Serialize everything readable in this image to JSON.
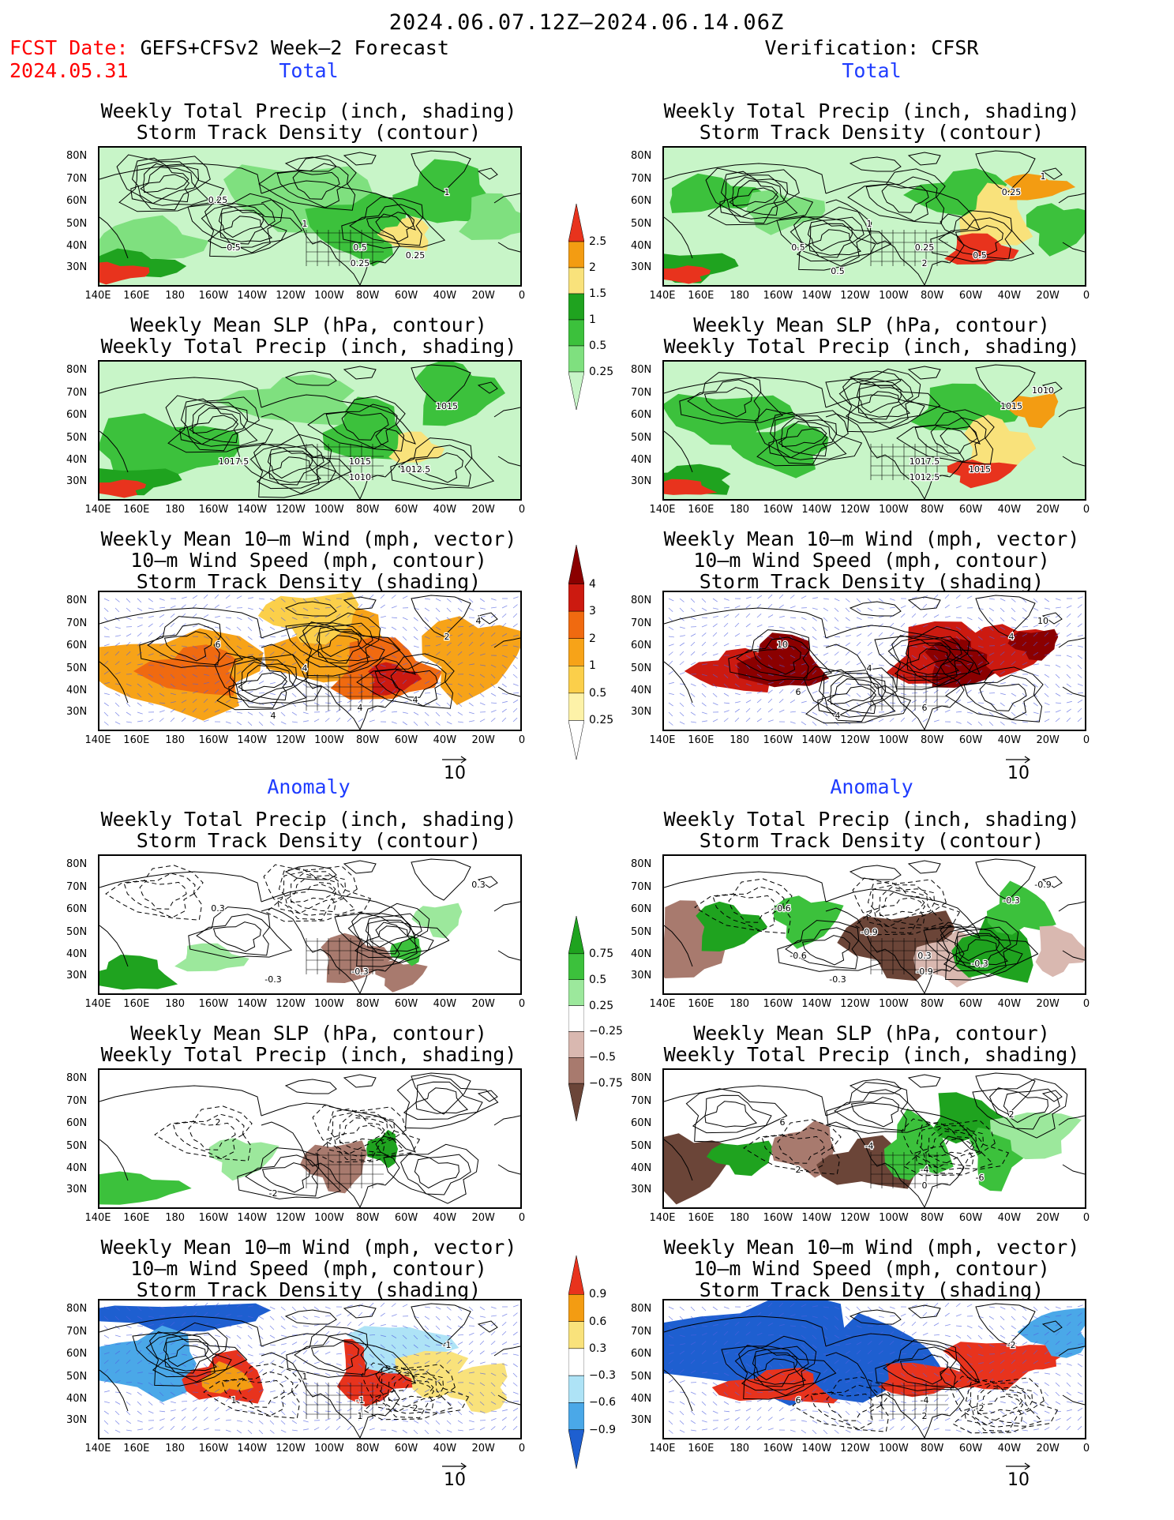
{
  "header": {
    "period": "2024.06.07.12Z–2024.06.14.06Z",
    "fcst_prefix": "FCST Date:",
    "fcst_model": "GEFS+CFSv2 Week–2 Forecast",
    "fcst_date": "2024.05.31",
    "verification": "Verification: CFSR"
  },
  "sections": {
    "total": "Total",
    "anomaly": "Anomaly"
  },
  "panel_titles": {
    "precip_storm": [
      "Weekly Total Precip (inch, shading)",
      "Storm Track Density (contour)"
    ],
    "slp_precip": [
      "Weekly Mean SLP (hPa, contour)",
      "Weekly Total Precip (inch, shading)"
    ],
    "wind_storm": [
      "Weekly Mean 10–m Wind (mph, vector)",
      "10–m Wind Speed (mph, contour)",
      "Storm Track Density (shading)"
    ]
  },
  "axes": {
    "lat_labels": [
      "80N",
      "70N",
      "60N",
      "50N",
      "40N",
      "30N"
    ],
    "lon_labels": [
      "140E",
      "160E",
      "180",
      "160W",
      "140W",
      "120W",
      "100W",
      "80W",
      "60W",
      "40W",
      "20W",
      "0"
    ]
  },
  "vector_ref": "10",
  "colorbars": {
    "total_precip": {
      "labels": [
        "2.5",
        "2",
        "1.5",
        "1",
        "0.5",
        "0.25"
      ],
      "colors": [
        "#e8331d",
        "#f39c12",
        "#f9e27b",
        "#1fa31f",
        "#3cc13c",
        "#7fe07f",
        "#c8f5c8"
      ]
    },
    "total_storm": {
      "labels": [
        "4",
        "3",
        "2",
        "1",
        "0.5",
        "0.25"
      ],
      "colors": [
        "#8b0000",
        "#cc1a10",
        "#f06a10",
        "#f7a318",
        "#fbcf4a",
        "#fdf2a8",
        "#ffffff"
      ]
    },
    "anom_precip": {
      "labels": [
        "0.75",
        "0.5",
        "0.25",
        "−0.25",
        "−0.5",
        "−0.75"
      ],
      "colors": [
        "#1fa31f",
        "#3cc13c",
        "#9ce89c",
        "#ffffff",
        "#d9b8b0",
        "#a87a6e",
        "#6b4538"
      ]
    },
    "anom_storm": {
      "labels": [
        "0.9",
        "0.6",
        "0.3",
        "−0.3",
        "−0.6",
        "−0.9"
      ],
      "colors": [
        "#e8331d",
        "#f39c12",
        "#f9e27b",
        "#ffffff",
        "#aee3f6",
        "#4aa8e8",
        "#1e5fd0"
      ]
    }
  },
  "panels": {
    "l1": {
      "kind": "precip",
      "labels": [
        "0.25",
        "1",
        "0.5",
        "0.5",
        "0.25",
        "1",
        "0.25"
      ]
    },
    "r1": {
      "kind": "precip",
      "labels": [
        "1",
        "0.5",
        "0.25",
        "0.5",
        "0.25",
        "2",
        "1",
        "0.5"
      ]
    },
    "l2": {
      "kind": "precip",
      "labels": [
        "1017.5",
        "1015",
        "1012.5",
        "1015",
        "1010"
      ]
    },
    "r2": {
      "kind": "precip",
      "labels": [
        "1017.5",
        "1015",
        "1015",
        "1012.5",
        "1010"
      ]
    },
    "l3": {
      "kind": "storm",
      "labels": [
        "4",
        "2",
        "4",
        "4",
        "4",
        "6",
        "4"
      ]
    },
    "r3": {
      "kind": "storm",
      "labels": [
        "4",
        "6",
        "10",
        "4",
        "10",
        "4",
        "6"
      ]
    },
    "l4": {
      "kind": "aprecip",
      "labels": [
        "-0.3",
        "0.3",
        "-0.3",
        "0.3"
      ]
    },
    "r4": {
      "kind": "aprecip",
      "labels": [
        "-0.9",
        "-0.3",
        "-0.6",
        "-0.9",
        "-0.6",
        "0.3",
        "-0.3",
        "-0.3",
        "-0.9"
      ]
    },
    "l5": {
      "kind": "aprecip",
      "labels": [
        "-2",
        "2"
      ]
    },
    "r5": {
      "kind": "aprecip",
      "labels": [
        "6",
        "-4",
        "2",
        "-4",
        "-6",
        "2",
        "0"
      ]
    },
    "l6": {
      "kind": "astorm",
      "labels": [
        "1",
        "1",
        "-1",
        "2",
        "-1",
        "1"
      ]
    },
    "r6": {
      "kind": "astorm",
      "labels": [
        "6",
        "-4",
        "-2",
        "-2",
        "2"
      ]
    }
  }
}
